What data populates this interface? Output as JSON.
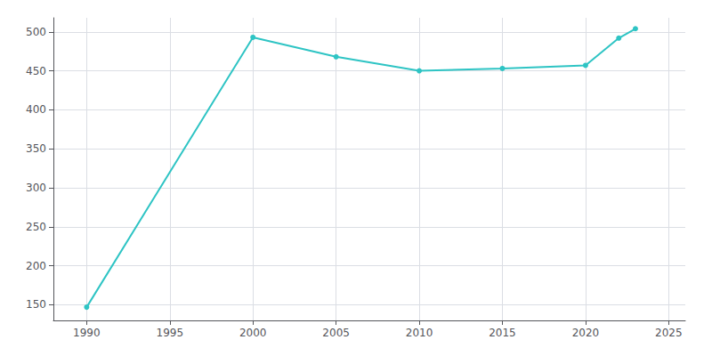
{
  "chart_data": {
    "type": "line",
    "x": [
      1990,
      2000,
      2005,
      2010,
      2015,
      2020,
      2022,
      2023
    ],
    "values": [
      147,
      493,
      468,
      450,
      453,
      457,
      492,
      504
    ],
    "color": "#2ec4c4",
    "marker": "circle",
    "xlim": [
      1988,
      2026
    ],
    "ylim": [
      130,
      518
    ],
    "xticks": [
      1990,
      1995,
      2000,
      2005,
      2010,
      2015,
      2020,
      2025
    ],
    "yticks": [
      150,
      200,
      250,
      300,
      350,
      400,
      450,
      500
    ],
    "grid": true
  }
}
